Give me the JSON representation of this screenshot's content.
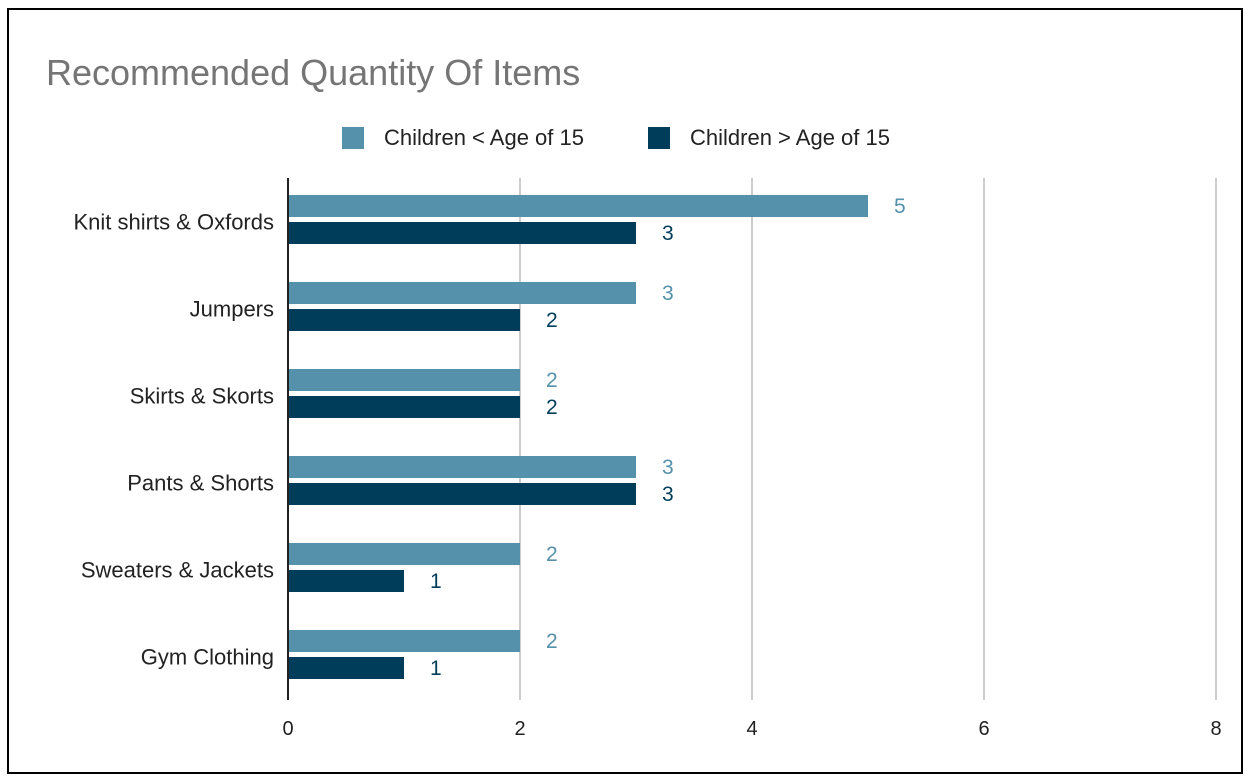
{
  "chart_data": {
    "type": "bar",
    "orientation": "horizontal",
    "title": "Recommended Quantity Of Items",
    "xlabel": "",
    "ylabel": "",
    "categories": [
      "Knit shirts & Oxfords",
      "Jumpers",
      "Skirts & Skorts",
      "Pants & Shorts",
      "Sweaters & Jackets",
      "Gym Clothing"
    ],
    "series": [
      {
        "name": "Children < Age of 15",
        "color": "#5591ab",
        "values": [
          5,
          3,
          2,
          3,
          2,
          2
        ]
      },
      {
        "name": "Children > Age of 15",
        "color": "#003d5b",
        "values": [
          3,
          2,
          2,
          3,
          1,
          1
        ]
      }
    ],
    "xlim": [
      0,
      8
    ],
    "xticks": [
      "0",
      "2",
      "4",
      "6",
      "8"
    ],
    "grid": true,
    "legend_position": "top",
    "data_labels": true
  }
}
